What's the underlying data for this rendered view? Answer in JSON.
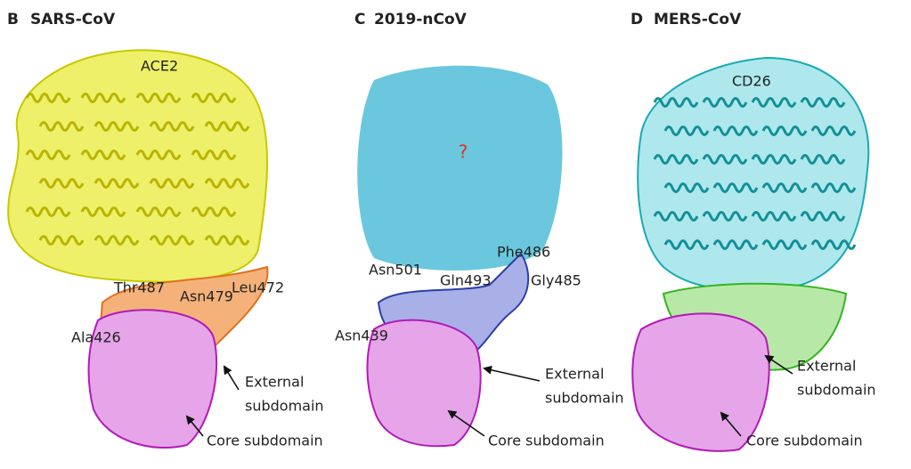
{
  "figure": {
    "panels": [
      {
        "letter": "B",
        "title": "SARS-CoV",
        "receptor": "ACE2",
        "residues": [
          "Thr487",
          "Asn479",
          "Leu472",
          "Ala426"
        ],
        "external": [
          "External",
          "subdomain"
        ],
        "core": "Core subdomain"
      },
      {
        "letter": "C",
        "title": "2019-nCoV",
        "receptor": "?",
        "residues": [
          "Phe486",
          "Asn501",
          "Gln493",
          "Gly485",
          "Asn439"
        ],
        "external": [
          "External",
          "subdomain"
        ],
        "core": "Core subdomain"
      },
      {
        "letter": "D",
        "title": "MERS-CoV",
        "receptor": "CD26",
        "external": [
          "External",
          "subdomain"
        ],
        "core": "Core subdomain"
      }
    ]
  }
}
